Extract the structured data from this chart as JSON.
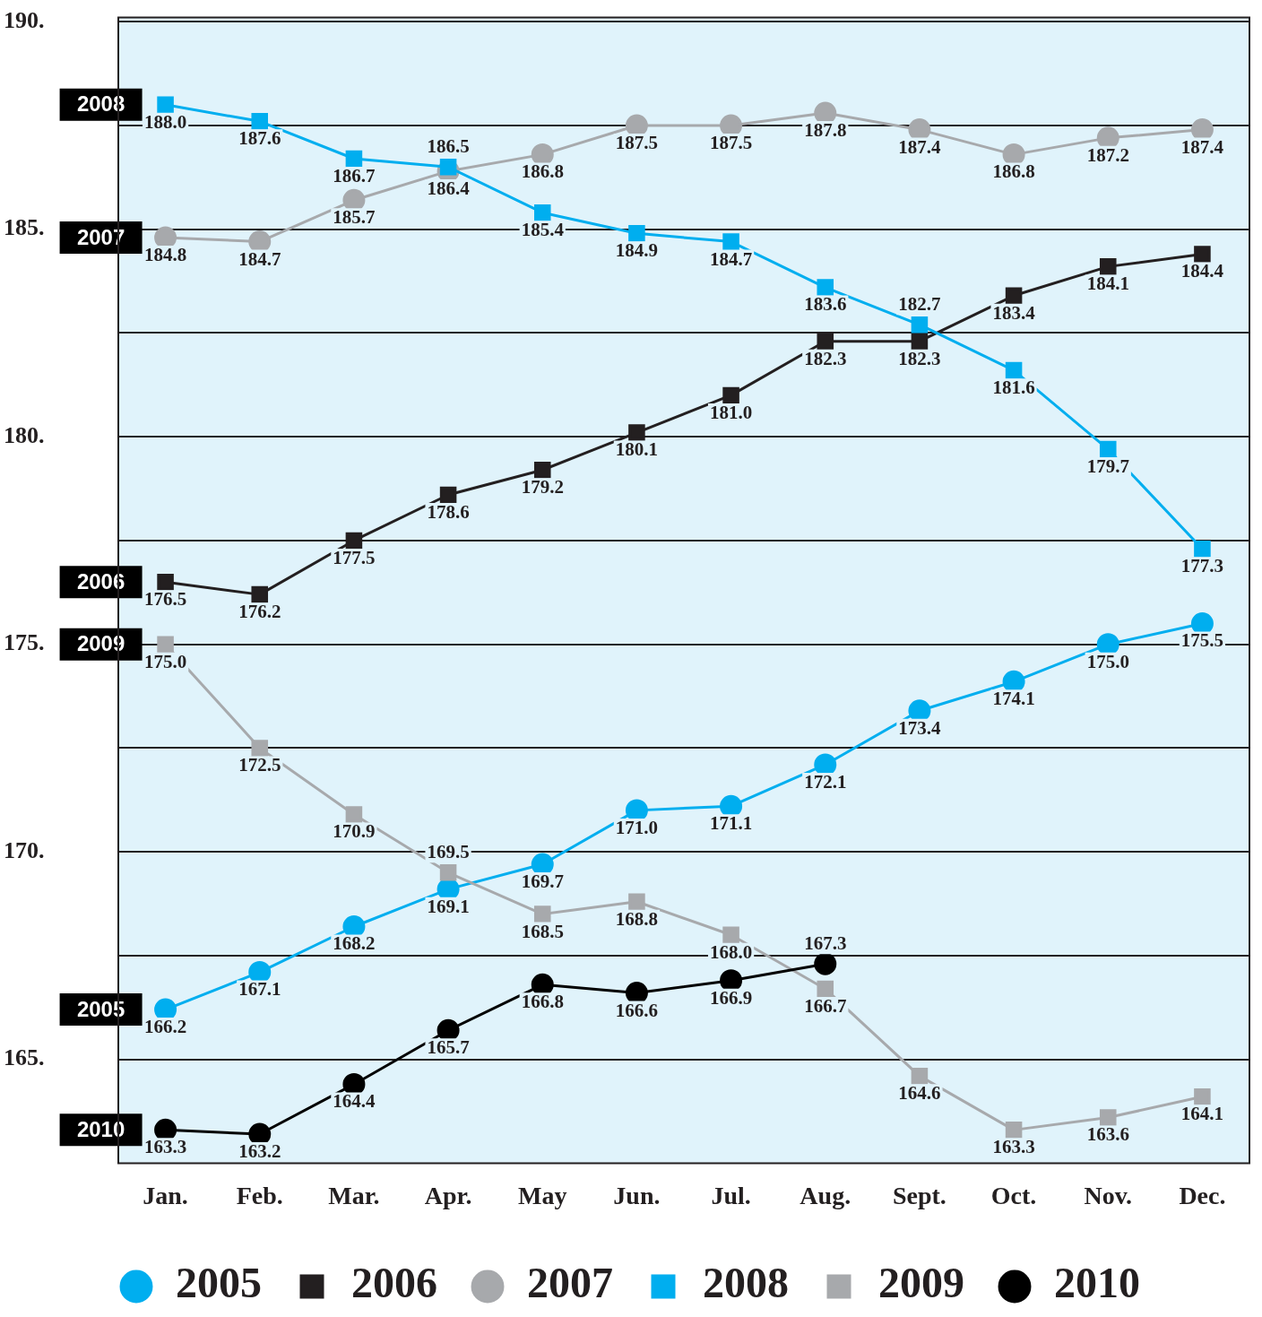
{
  "chart_data": {
    "type": "line",
    "categories": [
      "Jan.",
      "Feb.",
      "Mar.",
      "Apr.",
      "May",
      "Jun.",
      "Jul.",
      "Aug.",
      "Sept.",
      "Oct.",
      "Nov.",
      "Dec."
    ],
    "series": [
      {
        "name": "2005",
        "color": "#00aeef",
        "marker": "circle",
        "values": [
          166.2,
          167.1,
          168.2,
          169.1,
          169.7,
          171.0,
          171.1,
          172.1,
          173.4,
          174.1,
          175.0,
          175.5
        ],
        "value_labels": [
          "166.2",
          "167.1",
          "168.2",
          "169.1",
          "169.7",
          "171.0",
          "171.1",
          "172.1",
          "173.4",
          "174.1",
          "175.0",
          "175.5"
        ]
      },
      {
        "name": "2006",
        "color": "#231f20",
        "marker": "square",
        "values": [
          176.5,
          176.2,
          177.5,
          178.6,
          179.2,
          180.1,
          181.0,
          182.3,
          182.3,
          183.4,
          184.1,
          184.4
        ],
        "value_labels": [
          "176.5",
          "176.2",
          "177.5",
          "178.6",
          "179.2",
          "180.1",
          "181.0",
          "182.3",
          "182.3",
          "183.4",
          "184.1",
          "184.4"
        ]
      },
      {
        "name": "2007",
        "color": "#a7a9ac",
        "marker": "circle",
        "values": [
          184.8,
          184.7,
          185.7,
          186.4,
          186.8,
          187.5,
          187.5,
          187.8,
          187.4,
          186.8,
          187.2,
          187.4
        ],
        "value_labels": [
          "184.8",
          "184.7",
          "185.7",
          "186.4",
          "186.8",
          "187.5",
          "187.5",
          "187.8",
          "187.4",
          "186.8",
          "187.2",
          "187.4"
        ]
      },
      {
        "name": "2008",
        "color": "#00aeef",
        "marker": "square",
        "values": [
          188.0,
          187.6,
          186.7,
          186.5,
          185.4,
          184.9,
          184.7,
          183.6,
          182.7,
          181.6,
          179.7,
          177.3
        ],
        "value_labels": [
          "188.0",
          "187.6",
          "186.7",
          "186.5",
          "185.4",
          "184.9",
          "184.7",
          "183.6",
          "182.7",
          "181.6",
          "179.7",
          "177.3"
        ]
      },
      {
        "name": "2009",
        "color": "#a7a9ac",
        "marker": "square",
        "values": [
          175.0,
          172.5,
          170.9,
          169.5,
          168.5,
          168.8,
          168.0,
          166.7,
          164.6,
          163.3,
          163.6,
          164.1
        ],
        "value_labels": [
          "175.0",
          "172.5",
          "170.9",
          "169.5",
          "168.5",
          "168.8",
          "168.0",
          "166.7",
          "164.6",
          "163.3",
          "163.6",
          "164.1"
        ]
      },
      {
        "name": "2010",
        "color": "#000000",
        "marker": "circle",
        "values": [
          163.3,
          163.2,
          164.4,
          165.7,
          166.8,
          166.6,
          166.9,
          167.3,
          null,
          null,
          null,
          null
        ],
        "value_labels": [
          "163.3",
          "163.2",
          "164.4",
          "165.7",
          "166.8",
          "166.6",
          "166.9",
          "167.3",
          null,
          null,
          null,
          null
        ]
      }
    ],
    "ylim": [
      162.5,
      190.1
    ],
    "yticks": [
      {
        "value": 165,
        "label": "165."
      },
      {
        "value": 167.5,
        "label": null
      },
      {
        "value": 170,
        "label": "170."
      },
      {
        "value": 172.5,
        "label": null
      },
      {
        "value": 175,
        "label": "175."
      },
      {
        "value": 177.5,
        "label": null
      },
      {
        "value": 180,
        "label": "180."
      },
      {
        "value": 182.5,
        "label": null
      },
      {
        "value": 185,
        "label": "185."
      },
      {
        "value": 187.5,
        "label": null
      },
      {
        "value": 190,
        "label": "190."
      }
    ],
    "grid": "y",
    "legend": "bottom",
    "line_style": "solid"
  }
}
